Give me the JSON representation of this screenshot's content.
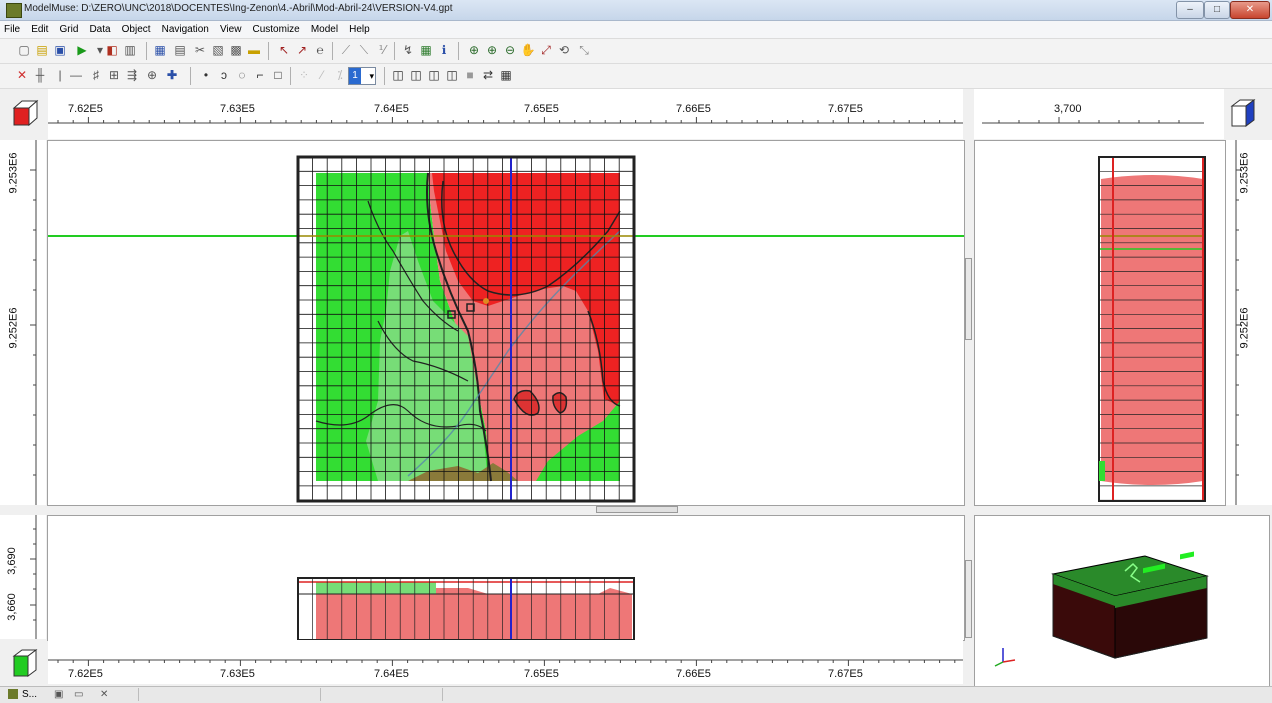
{
  "window": {
    "title": "ModelMuse: D:\\ZERO\\UNC\\2018\\DOCENTES\\Ing-Zenon\\4.-Abril\\Mod-Abril-24\\VERSION-V4.gpt",
    "controls": {
      "minimize": "–",
      "maximize": "□",
      "close": "✕"
    }
  },
  "menu": [
    "File",
    "Edit",
    "Grid",
    "Data",
    "Object",
    "Navigation",
    "View",
    "Customize",
    "Model",
    "Help"
  ],
  "toolbar": {
    "layer_value": "1"
  },
  "top_view": {
    "x_ticks": [
      "7.62E5",
      "7.63E5",
      "7.64E5",
      "7.65E5",
      "7.66E5",
      "7.67E5"
    ],
    "y_ticks": [
      "9.253E6",
      "9.252E6"
    ]
  },
  "side_view": {
    "top_ticks": [
      "3,700"
    ],
    "y_ticks": [
      "9.253E6",
      "9.252E6"
    ]
  },
  "front_view": {
    "y_ticks": [
      "3,690",
      "3,660"
    ],
    "x_ticks": [
      "7.62E5",
      "7.63E5",
      "7.64E5",
      "7.65E5",
      "7.66E5",
      "7.67E5"
    ]
  },
  "colors": {
    "green_zone": "#33dd33",
    "red_zone": "#ee2222",
    "pink_zone": "#ee7777",
    "light_green_zone": "#77dd77",
    "grid_line": "#000000",
    "blue_line": "#2222cc"
  },
  "statusbar": {
    "task": "S..."
  }
}
